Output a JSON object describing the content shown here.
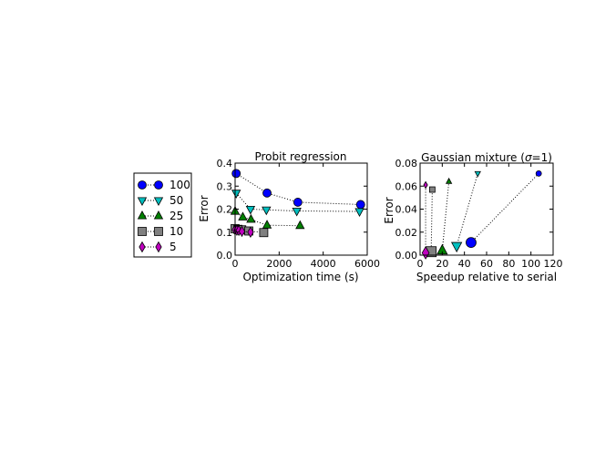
{
  "legend": {
    "placement": "left",
    "entries": [
      {
        "label": "100",
        "color": "#0000ff",
        "marker": "circle"
      },
      {
        "label": "50",
        "color": "#00bfbf",
        "marker": "triangle-down"
      },
      {
        "label": "25",
        "color": "#008000",
        "marker": "triangle-up"
      },
      {
        "label": "10",
        "color": "#808080",
        "marker": "square"
      },
      {
        "label": "5",
        "color": "#bf00bf",
        "marker": "diamond"
      }
    ]
  },
  "chart_data": [
    {
      "type": "scatter",
      "title": "Probit regression",
      "xlabel": "Optimization time (s)",
      "ylabel": "Error",
      "xlim": [
        0,
        6000
      ],
      "ylim": [
        0,
        0.4
      ],
      "xticks": [
        "0",
        "2000",
        "4000",
        "6000"
      ],
      "yticks": [
        "0.0",
        "0.1",
        "0.2",
        "0.3",
        "0.4"
      ],
      "grid": false,
      "series": [
        {
          "name": "100",
          "points": [
            [
              50,
              0.355
            ],
            [
              1450,
              0.27
            ],
            [
              2850,
              0.23
            ],
            [
              5700,
              0.22
            ]
          ]
        },
        {
          "name": "50",
          "points": [
            [
              50,
              0.27
            ],
            [
              700,
              0.2
            ],
            [
              1420,
              0.197
            ],
            [
              2800,
              0.192
            ],
            [
              5650,
              0.19
            ]
          ]
        },
        {
          "name": "25",
          "points": [
            [
              0,
              0.19
            ],
            [
              350,
              0.165
            ],
            [
              720,
              0.155
            ],
            [
              1450,
              0.13
            ],
            [
              2950,
              0.128
            ]
          ]
        },
        {
          "name": "10",
          "points": [
            [
              0,
              0.115
            ],
            [
              130,
              0.112
            ],
            [
              300,
              0.11
            ],
            [
              620,
              0.105
            ],
            [
              1300,
              0.098
            ]
          ]
        },
        {
          "name": "5",
          "points": [
            [
              0,
              0.11
            ],
            [
              80,
              0.108
            ],
            [
              170,
              0.107
            ],
            [
              310,
              0.103
            ],
            [
              700,
              0.1
            ]
          ]
        }
      ]
    },
    {
      "type": "scatter",
      "title": "Gaussian mixture (σ=1)",
      "xlabel": "Speedup relative to serial",
      "ylabel": "Error",
      "xlim": [
        0,
        120
      ],
      "ylim": [
        0,
        0.08
      ],
      "xticks": [
        "0",
        "20",
        "40",
        "60",
        "80",
        "100",
        "120"
      ],
      "yticks": [
        "0.00",
        "0.02",
        "0.04",
        "0.06",
        "0.08"
      ],
      "grid": false,
      "note": "marker size decreases along each dotted line",
      "series": [
        {
          "name": "100",
          "points": [
            [
              46,
              0.011
            ],
            [
              107,
              0.071
            ]
          ]
        },
        {
          "name": "50",
          "points": [
            [
              33,
              0.008
            ],
            [
              52,
              0.071
            ]
          ]
        },
        {
          "name": "25",
          "points": [
            [
              20,
              0.004
            ],
            [
              26,
              0.064
            ]
          ]
        },
        {
          "name": "10",
          "points": [
            [
              10,
              0.003
            ],
            [
              11,
              0.057
            ]
          ]
        },
        {
          "name": "5",
          "points": [
            [
              5,
              0.002
            ],
            [
              5,
              0.061
            ]
          ]
        }
      ]
    }
  ]
}
